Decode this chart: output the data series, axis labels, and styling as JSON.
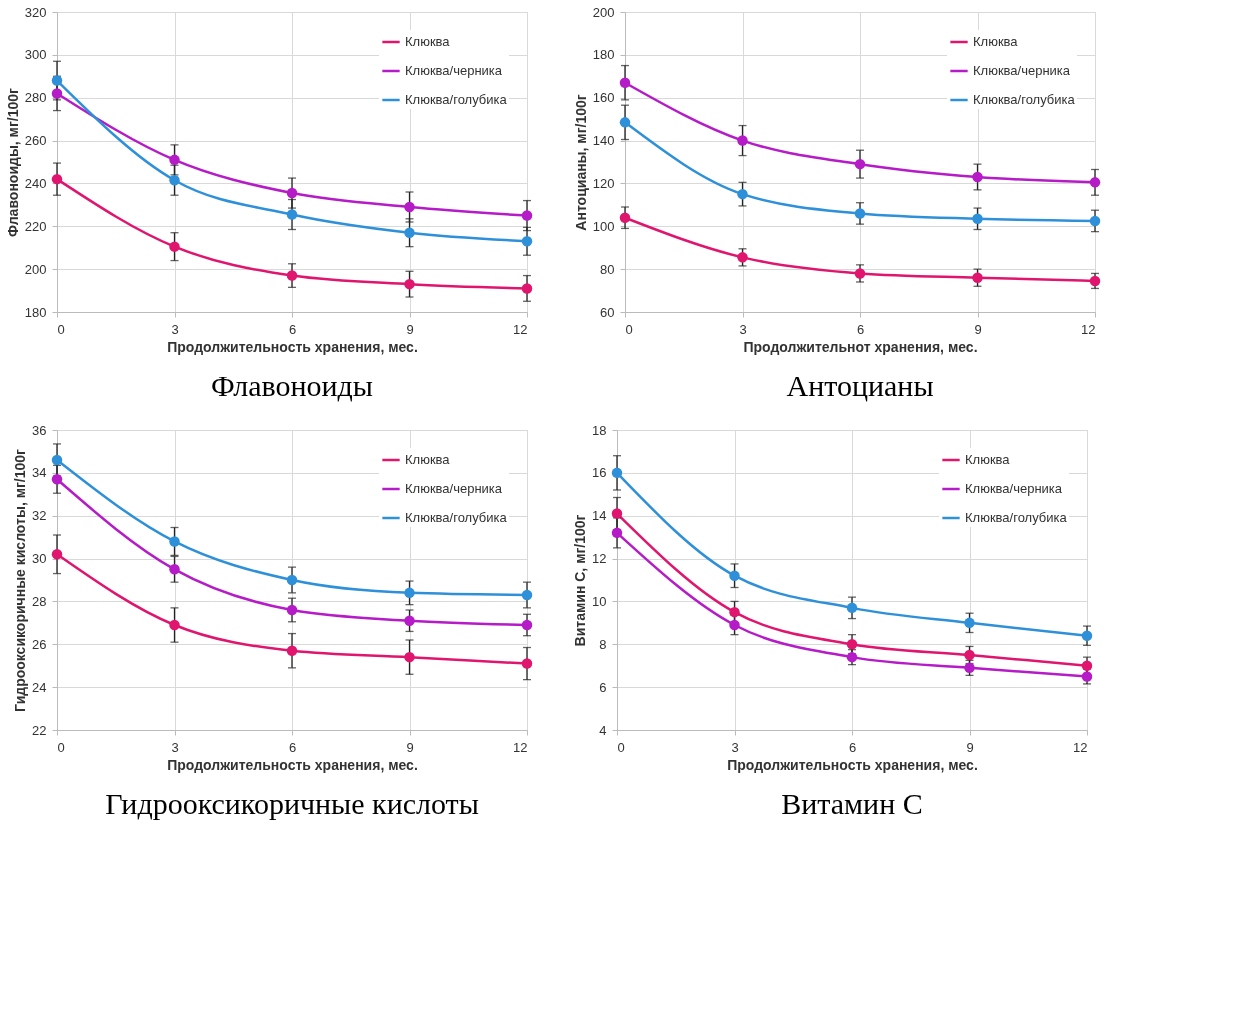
{
  "chart_data": [
    {
      "type": "line",
      "title": "Флавоноиды",
      "xlabel": "Продолжительность хранения, мес.",
      "ylabel": "Флавоноиды, мг/100г",
      "x": [
        0,
        3,
        6,
        9,
        12
      ],
      "xlim": [
        0,
        12
      ],
      "xticks": [
        0,
        3,
        6,
        9,
        12
      ],
      "ylim": [
        180,
        320
      ],
      "yticks": [
        180,
        200,
        220,
        240,
        260,
        280,
        300,
        320
      ],
      "grid": true,
      "legend": "top right",
      "marker": "circle",
      "line_style": "solid",
      "series": [
        {
          "name": "Клюква",
          "color": "#e0156e",
          "values": [
            242,
            210.5,
            197,
            193,
            191
          ],
          "errors": [
            7.5,
            6.5,
            5.5,
            6,
            6
          ]
        },
        {
          "name": "Клюква/черника",
          "color": "#b51bc7",
          "values": [
            282,
            251,
            235.5,
            229,
            225
          ],
          "errors": [
            8,
            7,
            7,
            7,
            7
          ]
        },
        {
          "name": "Клюква/голубика",
          "color": "#2e90d9",
          "values": [
            288,
            241.5,
            225.5,
            217,
            213
          ],
          "errors": [
            9,
            7,
            7,
            6.5,
            6.5
          ]
        }
      ]
    },
    {
      "type": "line",
      "title": "Антоцианы",
      "xlabel": "Продолжительнот хранения, мес.",
      "ylabel": "Антоцианы, мг/100г",
      "x": [
        0,
        3,
        6,
        9,
        12
      ],
      "xlim": [
        0,
        12
      ],
      "xticks": [
        0,
        3,
        6,
        9,
        12
      ],
      "ylim": [
        60,
        200
      ],
      "yticks": [
        60,
        80,
        100,
        120,
        140,
        160,
        180,
        200
      ],
      "grid": true,
      "legend": "top right",
      "marker": "circle",
      "line_style": "solid",
      "series": [
        {
          "name": "Клюква",
          "color": "#e0156e",
          "values": [
            104,
            85.5,
            78,
            76,
            74.5
          ],
          "errors": [
            5,
            4,
            4,
            4,
            3.5
          ]
        },
        {
          "name": "Клюква/черника",
          "color": "#b51bc7",
          "values": [
            167,
            140,
            129,
            123,
            120.5
          ],
          "errors": [
            8,
            7,
            6.5,
            6,
            6
          ]
        },
        {
          "name": "Клюква/голубика",
          "color": "#2e90d9",
          "values": [
            148.5,
            115,
            106,
            103.5,
            102.5
          ],
          "errors": [
            8,
            5.5,
            5,
            5,
            5
          ]
        }
      ]
    },
    {
      "type": "line",
      "title": "Гидрооксикоричные кислоты",
      "xlabel": "Продолжительность хранения, мес.",
      "ylabel": "Гидрооксикоричные кислоты, мг/100г",
      "x": [
        0,
        3,
        6,
        9,
        12
      ],
      "xlim": [
        0,
        12
      ],
      "xticks": [
        0,
        3,
        6,
        9,
        12
      ],
      "ylim": [
        22,
        36
      ],
      "yticks": [
        22,
        24,
        26,
        28,
        30,
        32,
        34,
        36
      ],
      "grid": true,
      "legend": "top right",
      "marker": "circle",
      "line_style": "solid",
      "series": [
        {
          "name": "Клюква",
          "color": "#e0156e",
          "values": [
            30.2,
            26.9,
            25.7,
            25.4,
            25.1
          ],
          "errors": [
            0.9,
            0.8,
            0.8,
            0.8,
            0.75
          ]
        },
        {
          "name": "Клюква/черника",
          "color": "#b51bc7",
          "values": [
            33.7,
            29.5,
            27.6,
            27.1,
            26.9
          ],
          "errors": [
            0.65,
            0.6,
            0.55,
            0.5,
            0.5
          ]
        },
        {
          "name": "Клюква/голубика",
          "color": "#2e90d9",
          "values": [
            34.6,
            30.8,
            29.0,
            28.4,
            28.3
          ],
          "errors": [
            0.75,
            0.65,
            0.6,
            0.55,
            0.6
          ]
        }
      ]
    },
    {
      "type": "line",
      "title": "Витамин С",
      "xlabel": "Продолжительность хранения, мес.",
      "ylabel": "Витамин С, мг/100г",
      "x": [
        0,
        3,
        6,
        9,
        12
      ],
      "xlim": [
        0,
        12
      ],
      "xticks": [
        0,
        3,
        6,
        9,
        12
      ],
      "ylim": [
        4,
        18
      ],
      "yticks": [
        4,
        6,
        8,
        10,
        12,
        14,
        16,
        18
      ],
      "grid": true,
      "legend": "top right",
      "marker": "circle",
      "line_style": "solid",
      "series": [
        {
          "name": "Клюква",
          "color": "#e0156e",
          "values": [
            14.1,
            9.5,
            8.0,
            7.5,
            7.0
          ],
          "errors": [
            0.75,
            0.5,
            0.45,
            0.4,
            0.4
          ]
        },
        {
          "name": "Клюква/черника",
          "color": "#b51bc7",
          "values": [
            13.2,
            8.9,
            7.4,
            6.9,
            6.5
          ],
          "errors": [
            0.7,
            0.45,
            0.35,
            0.35,
            0.35
          ]
        },
        {
          "name": "Клюква/голубика",
          "color": "#2e90d9",
          "values": [
            16.0,
            11.2,
            9.7,
            9.0,
            8.4
          ],
          "errors": [
            0.8,
            0.55,
            0.5,
            0.45,
            0.45
          ]
        }
      ]
    }
  ]
}
